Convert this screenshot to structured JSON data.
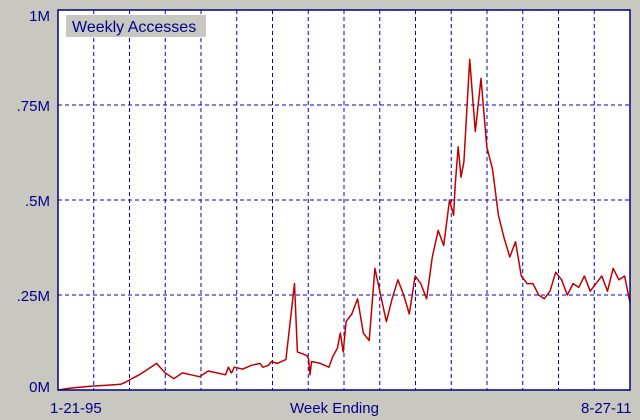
{
  "chart_data": {
    "type": "line",
    "title": "Weekly Accesses",
    "xlabel": "Week Ending",
    "ylabel": "",
    "x_tick_labels": [
      "1-21-95",
      "8-27-11"
    ],
    "x_range": [
      "1995-01-21",
      "2011-08-27"
    ],
    "y_tick_labels": [
      "0M",
      ".25M",
      ".5M",
      ".75M",
      "1M"
    ],
    "y_ticks": [
      0,
      250000,
      500000,
      750000,
      1000000
    ],
    "ylim": [
      0,
      1000000
    ],
    "grid": true,
    "colors": {
      "background": "#c8c8c0",
      "plot_background": "#ffffff",
      "line": "#c00000",
      "grid": "#0000cc",
      "text": "#00008b",
      "axis": "#000080"
    },
    "series": [
      {
        "x": [
          "1995-01-21",
          "1995-06-01",
          "1996-01-01",
          "1996-06-01",
          "1996-11-15",
          "1997-01-01",
          "1997-03-15",
          "1997-06-01",
          "1997-09-01",
          "1997-12-01",
          "1998-03-01",
          "1998-06-01",
          "1998-09-01",
          "1998-12-01",
          "1999-03-01",
          "1999-06-01",
          "1999-09-01",
          "1999-12-01",
          "2000-01-01",
          "2000-02-01",
          "2000-02-15",
          "2000-03-01",
          "2000-06-01",
          "2000-09-01",
          "2000-12-01",
          "2001-01-01",
          "2001-03-01",
          "2001-04-01",
          "2001-06-01",
          "2001-09-01",
          "2001-12-01",
          "2002-01-01",
          "2002-03-01",
          "2002-04-15",
          "2002-05-01",
          "2002-05-15",
          "2002-06-01",
          "2002-09-01",
          "2002-12-01",
          "2003-01-15",
          "2003-03-01",
          "2003-04-01",
          "2003-05-01",
          "2003-06-01",
          "2003-08-01",
          "2003-10-01",
          "2003-12-01",
          "2004-02-01",
          "2004-04-01",
          "2004-06-01",
          "2004-08-01",
          "2004-10-01",
          "2004-12-01",
          "2005-02-01",
          "2005-04-01",
          "2005-06-01",
          "2005-08-01",
          "2005-10-01",
          "2005-12-01",
          "2006-02-01",
          "2006-04-01",
          "2006-06-01",
          "2006-07-15",
          "2006-08-01",
          "2006-09-01",
          "2006-10-01",
          "2006-11-01",
          "2007-01-01",
          "2007-03-01",
          "2007-05-01",
          "2007-07-01",
          "2007-09-01",
          "2007-11-01",
          "2008-01-01",
          "2008-03-01",
          "2008-05-01",
          "2008-07-01",
          "2008-09-01",
          "2008-11-01",
          "2009-01-01",
          "2009-03-01",
          "2009-05-01",
          "2009-07-01",
          "2009-09-01",
          "2009-11-01",
          "2010-01-01",
          "2010-03-01",
          "2010-05-01",
          "2010-07-01",
          "2010-09-01",
          "2010-11-01",
          "2011-01-01",
          "2011-03-01",
          "2011-05-01",
          "2011-07-01",
          "2011-08-27"
        ],
        "values": [
          0,
          5000,
          10000,
          12000,
          15000,
          20000,
          30000,
          40000,
          55000,
          70000,
          45000,
          30000,
          45000,
          40000,
          35000,
          50000,
          45000,
          40000,
          60000,
          45000,
          50000,
          60000,
          55000,
          65000,
          70000,
          60000,
          65000,
          75000,
          70000,
          80000,
          280000,
          100000,
          95000,
          90000,
          80000,
          40000,
          75000,
          70000,
          60000,
          90000,
          110000,
          150000,
          100000,
          180000,
          200000,
          240000,
          150000,
          130000,
          320000,
          250000,
          180000,
          240000,
          290000,
          250000,
          200000,
          300000,
          280000,
          240000,
          350000,
          420000,
          380000,
          500000,
          460000,
          540000,
          640000,
          560000,
          600000,
          870000,
          680000,
          820000,
          640000,
          580000,
          460000,
          400000,
          350000,
          390000,
          300000,
          280000,
          280000,
          250000,
          240000,
          260000,
          310000,
          290000,
          250000,
          280000,
          270000,
          300000,
          260000,
          280000,
          300000,
          260000,
          320000,
          290000,
          300000,
          230000
        ]
      }
    ]
  }
}
